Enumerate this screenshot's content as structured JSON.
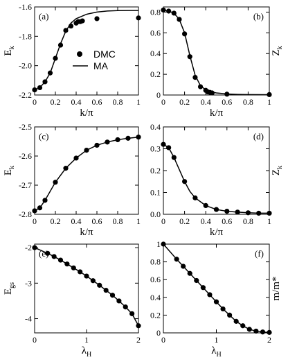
{
  "chart_data": [
    {
      "id": "a",
      "type": "line",
      "panel_label": "(a)",
      "xlabel": {
        "main": "k/π",
        "sub": ""
      },
      "ylabel": {
        "main": "E",
        "sub": "k"
      },
      "xlim": [
        0,
        1
      ],
      "ylim": [
        -2.2,
        -1.6
      ],
      "xticks": [
        0,
        0.2,
        0.4,
        0.6,
        0.8,
        1
      ],
      "xtick_labels": [
        "0",
        "0.2",
        "0.4",
        "0.6",
        "0.8",
        "1"
      ],
      "yticks": [
        -2.2,
        -2.0,
        -1.8,
        -1.6
      ],
      "ytick_labels": [
        "-2.2",
        "-2.0",
        "-1.8",
        "-1.6"
      ],
      "legend": {
        "position": "center-right",
        "entries": [
          {
            "label": "DMC",
            "marker": "dot"
          },
          {
            "label": "MA",
            "marker": "line"
          }
        ]
      },
      "series": [
        {
          "name": "DMC",
          "mode": "markers",
          "x": [
            0,
            0.05,
            0.1,
            0.15,
            0.2,
            0.25,
            0.3,
            0.35,
            0.4,
            0.42,
            0.44,
            0.46,
            0.6,
            1.0
          ],
          "y": [
            -2.165,
            -2.15,
            -2.11,
            -2.05,
            -1.95,
            -1.86,
            -1.76,
            -1.73,
            -1.71,
            -1.7,
            -1.7,
            -1.695,
            -1.68,
            -1.675
          ]
        },
        {
          "name": "MA",
          "mode": "line",
          "x": [
            0,
            0.05,
            0.1,
            0.15,
            0.2,
            0.25,
            0.3,
            0.35,
            0.4,
            0.5,
            0.6,
            0.7,
            0.8,
            0.9,
            1.0
          ],
          "y": [
            -2.165,
            -2.15,
            -2.11,
            -2.05,
            -1.95,
            -1.85,
            -1.765,
            -1.71,
            -1.68,
            -1.65,
            -1.635,
            -1.628,
            -1.625,
            -1.624,
            -1.624
          ]
        }
      ]
    },
    {
      "id": "b",
      "type": "line",
      "panel_label": "(b)",
      "xlabel": {
        "main": "k/π",
        "sub": ""
      },
      "ylabel": {
        "main": "Z",
        "sub": "k"
      },
      "xlim": [
        0,
        1
      ],
      "ylim": [
        0,
        0.85
      ],
      "xticks": [
        0,
        0.2,
        0.4,
        0.6,
        0.8,
        1
      ],
      "xtick_labels": [
        "0",
        "0.2",
        "0.4",
        "0.6",
        "0.8",
        "1"
      ],
      "yticks": [
        0,
        0.2,
        0.4,
        0.6,
        0.8
      ],
      "ytick_labels": [
        "0",
        "0.2",
        "0.4",
        "0.6",
        "0.8"
      ],
      "series": [
        {
          "name": "DMC",
          "mode": "markers",
          "x": [
            0,
            0.05,
            0.1,
            0.15,
            0.2,
            0.25,
            0.3,
            0.35,
            0.4,
            0.42,
            0.44,
            0.46,
            0.6,
            1.0
          ],
          "y": [
            0.82,
            0.81,
            0.79,
            0.73,
            0.59,
            0.37,
            0.17,
            0.08,
            0.045,
            0.03,
            0.025,
            0.02,
            0.008,
            0.004
          ]
        },
        {
          "name": "MA",
          "mode": "line",
          "x": [
            0,
            0.05,
            0.1,
            0.15,
            0.2,
            0.25,
            0.3,
            0.35,
            0.4,
            0.45,
            0.5,
            0.6,
            0.7,
            0.8,
            1.0
          ],
          "y": [
            0.82,
            0.81,
            0.79,
            0.73,
            0.6,
            0.38,
            0.19,
            0.09,
            0.05,
            0.03,
            0.02,
            0.01,
            0.006,
            0.004,
            0.003
          ]
        }
      ]
    },
    {
      "id": "c",
      "type": "line",
      "panel_label": "(c)",
      "xlabel": {
        "main": "k/π",
        "sub": ""
      },
      "ylabel": {
        "main": "E",
        "sub": "k"
      },
      "xlim": [
        0,
        1
      ],
      "ylim": [
        -2.8,
        -2.5
      ],
      "xticks": [
        0,
        0.2,
        0.4,
        0.6,
        0.8,
        1
      ],
      "xtick_labels": [
        "0",
        "0.2",
        "0.4",
        "0.6",
        "0.8",
        "1"
      ],
      "yticks": [
        -2.8,
        -2.7,
        -2.6,
        -2.5
      ],
      "ytick_labels": [
        "-2.8",
        "-2.7",
        "-2.6",
        "-2.5"
      ],
      "series": [
        {
          "name": "DMC",
          "mode": "markers",
          "x": [
            0,
            0.05,
            0.1,
            0.2,
            0.3,
            0.4,
            0.5,
            0.6,
            0.7,
            0.8,
            0.9,
            1.0
          ],
          "y": [
            -2.788,
            -2.778,
            -2.752,
            -2.69,
            -2.642,
            -2.607,
            -2.58,
            -2.563,
            -2.552,
            -2.544,
            -2.539,
            -2.535
          ]
        },
        {
          "name": "MA",
          "mode": "line",
          "x": [
            0,
            0.05,
            0.1,
            0.2,
            0.3,
            0.4,
            0.5,
            0.6,
            0.7,
            0.8,
            0.9,
            1.0
          ],
          "y": [
            -2.788,
            -2.778,
            -2.752,
            -2.69,
            -2.642,
            -2.607,
            -2.58,
            -2.563,
            -2.552,
            -2.544,
            -2.539,
            -2.535
          ]
        }
      ]
    },
    {
      "id": "d",
      "type": "line",
      "panel_label": "(d)",
      "xlabel": {
        "main": "k/π",
        "sub": ""
      },
      "ylabel": {
        "main": "Z",
        "sub": "k"
      },
      "xlim": [
        0,
        1
      ],
      "ylim": [
        0,
        0.4
      ],
      "xticks": [
        0,
        0.2,
        0.4,
        0.6,
        0.8,
        1
      ],
      "xtick_labels": [
        "0",
        "0.2",
        "0.4",
        "0.6",
        "0.8",
        "1"
      ],
      "yticks": [
        0,
        0.1,
        0.2,
        0.3,
        0.4
      ],
      "ytick_labels": [
        "0.0",
        "0.1",
        "0.2",
        "0.3",
        "0.4"
      ],
      "series": [
        {
          "name": "DMC",
          "mode": "markers",
          "x": [
            0,
            0.05,
            0.1,
            0.2,
            0.3,
            0.4,
            0.5,
            0.6,
            0.7,
            0.8,
            0.9,
            1.0
          ],
          "y": [
            0.32,
            0.305,
            0.26,
            0.15,
            0.075,
            0.04,
            0.022,
            0.014,
            0.01,
            0.007,
            0.005,
            0.005
          ]
        },
        {
          "name": "MA",
          "mode": "line",
          "x": [
            0,
            0.05,
            0.1,
            0.15,
            0.2,
            0.25,
            0.3,
            0.4,
            0.5,
            0.6,
            0.7,
            0.8,
            0.9,
            1.0
          ],
          "y": [
            0.32,
            0.305,
            0.26,
            0.205,
            0.15,
            0.105,
            0.075,
            0.04,
            0.022,
            0.014,
            0.01,
            0.007,
            0.005,
            0.005
          ]
        }
      ]
    },
    {
      "id": "e",
      "type": "line",
      "panel_label": "(e)",
      "xlabel": {
        "main": "λ",
        "sub": "H"
      },
      "ylabel": {
        "main": "E",
        "sub": "gs"
      },
      "xlim": [
        0,
        2
      ],
      "ylim": [
        -4.4,
        -1.9
      ],
      "xticks": [
        0,
        1,
        2
      ],
      "xtick_labels": [
        "0",
        "1",
        "2"
      ],
      "yticks": [
        -4,
        -3,
        -2
      ],
      "ytick_labels": [
        "-4",
        "-3",
        "-2"
      ],
      "series": [
        {
          "name": "DMC",
          "mode": "markers",
          "x": [
            0,
            0.25,
            0.375,
            0.5,
            0.625,
            0.75,
            0.875,
            1.0,
            1.125,
            1.25,
            1.375,
            1.5,
            1.625,
            1.75,
            1.875,
            2.0
          ],
          "y": [
            -2.0,
            -2.16,
            -2.25,
            -2.35,
            -2.46,
            -2.57,
            -2.68,
            -2.8,
            -2.93,
            -3.06,
            -3.2,
            -3.34,
            -3.5,
            -3.67,
            -3.86,
            -4.2
          ]
        },
        {
          "name": "MA",
          "mode": "line",
          "x": [
            0,
            0.25,
            0.375,
            0.5,
            0.625,
            0.75,
            0.875,
            1.0,
            1.125,
            1.25,
            1.375,
            1.5,
            1.625,
            1.75,
            1.875,
            2.0
          ],
          "y": [
            -2.0,
            -2.16,
            -2.25,
            -2.35,
            -2.46,
            -2.57,
            -2.68,
            -2.8,
            -2.93,
            -3.06,
            -3.2,
            -3.34,
            -3.5,
            -3.67,
            -3.86,
            -4.2
          ]
        }
      ]
    },
    {
      "id": "f",
      "type": "line",
      "panel_label": "(f)",
      "xlabel": {
        "main": "λ",
        "sub": "H"
      },
      "ylabel": {
        "main": "m/m*",
        "sub": ""
      },
      "xlim": [
        0,
        2
      ],
      "ylim": [
        0,
        1
      ],
      "xticks": [
        0,
        1,
        2
      ],
      "xtick_labels": [
        "0",
        "1",
        "2"
      ],
      "yticks": [
        0,
        0.2,
        0.4,
        0.6,
        0.8,
        1
      ],
      "ytick_labels": [
        "0",
        "0.2",
        "0.4",
        "0.6",
        "0.8",
        "1"
      ],
      "series": [
        {
          "name": "DMC",
          "mode": "markers",
          "x": [
            0,
            0.25,
            0.375,
            0.5,
            0.625,
            0.75,
            0.875,
            1.0,
            1.125,
            1.25,
            1.375,
            1.5,
            1.625,
            1.75,
            1.875,
            2.0
          ],
          "y": [
            1.0,
            0.83,
            0.75,
            0.67,
            0.59,
            0.51,
            0.43,
            0.35,
            0.27,
            0.2,
            0.13,
            0.08,
            0.04,
            0.02,
            0.01,
            0.005
          ]
        },
        {
          "name": "MA",
          "mode": "line",
          "x": [
            0,
            0.25,
            0.375,
            0.5,
            0.625,
            0.75,
            0.875,
            1.0,
            1.125,
            1.25,
            1.375,
            1.5,
            1.625,
            1.75,
            1.875,
            2.0
          ],
          "y": [
            1.0,
            0.83,
            0.75,
            0.67,
            0.59,
            0.51,
            0.43,
            0.35,
            0.27,
            0.2,
            0.13,
            0.08,
            0.04,
            0.02,
            0.01,
            0.005
          ]
        }
      ]
    }
  ]
}
